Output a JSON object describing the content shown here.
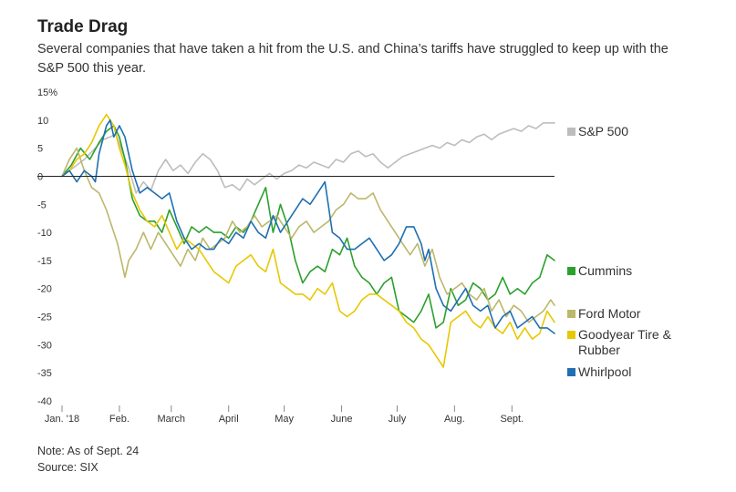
{
  "header": {
    "title": "Trade Drag",
    "subtitle": "Several companies that have taken a hit from the U.S. and China’s tariffs have struggled to keep up with the S&P 500 this year."
  },
  "footer": {
    "note": "Note: As of Sept. 24",
    "source": "Source: SIX"
  },
  "chart_data": {
    "type": "line",
    "title": "Trade Drag",
    "ylabel": "",
    "xlabel": "",
    "ylim": [
      -40,
      15
    ],
    "xlim": [
      0,
      266
    ],
    "grid": false,
    "legend_placement": "right, next to series ends",
    "y_ticks": [
      {
        "value": 15,
        "label": "15%"
      },
      {
        "value": 10,
        "label": "10"
      },
      {
        "value": 5,
        "label": "5"
      },
      {
        "value": 0,
        "label": "0"
      },
      {
        "value": -5,
        "label": "-5"
      },
      {
        "value": -10,
        "label": "-10"
      },
      {
        "value": -15,
        "label": "-15"
      },
      {
        "value": -20,
        "label": "-20"
      },
      {
        "value": -25,
        "label": "-25"
      },
      {
        "value": -30,
        "label": "-30"
      },
      {
        "value": -35,
        "label": "-35"
      },
      {
        "value": -40,
        "label": "-40"
      }
    ],
    "x_ticks": [
      {
        "day": 0,
        "label": "Jan. '18"
      },
      {
        "day": 31,
        "label": "Feb."
      },
      {
        "day": 59,
        "label": "March"
      },
      {
        "day": 90,
        "label": "April"
      },
      {
        "day": 120,
        "label": "May"
      },
      {
        "day": 151,
        "label": "June"
      },
      {
        "day": 181,
        "label": "July"
      },
      {
        "day": 212,
        "label": "Aug."
      },
      {
        "day": 243,
        "label": "Sept."
      }
    ],
    "series": [
      {
        "name": "S&P 500",
        "label_lines": [
          "S&P 500"
        ],
        "color": "#bdbdbd",
        "x": [
          0,
          6,
          12,
          18,
          22,
          26,
          29,
          33,
          36,
          40,
          44,
          48,
          52,
          56,
          60,
          64,
          68,
          72,
          76,
          80,
          84,
          88,
          92,
          96,
          100,
          104,
          108,
          112,
          116,
          120,
          124,
          128,
          132,
          136,
          140,
          144,
          148,
          152,
          156,
          160,
          164,
          168,
          172,
          176,
          180,
          184,
          188,
          192,
          196,
          200,
          204,
          208,
          212,
          216,
          220,
          224,
          228,
          232,
          236,
          240,
          244,
          248,
          252,
          256,
          260,
          264,
          266
        ],
        "y": [
          0,
          1.5,
          3,
          5,
          6.5,
          7,
          7.5,
          4,
          1.5,
          -3,
          -1,
          -2.5,
          1,
          3,
          1,
          2,
          0.5,
          2.5,
          4,
          3,
          1,
          -2,
          -1.5,
          -2.5,
          -0.5,
          -1.5,
          -0.5,
          0.5,
          -0.5,
          0.5,
          1,
          2,
          1.5,
          2.5,
          2,
          1.5,
          3,
          2.5,
          4,
          4.5,
          3.5,
          4,
          2.5,
          1.5,
          2.5,
          3.5,
          4,
          4.5,
          5,
          5.5,
          5,
          6,
          5.5,
          6.5,
          6,
          7,
          7.5,
          6.5,
          7.5,
          8,
          8.5,
          8,
          9,
          8.5,
          9.5,
          9.5,
          9.5
        ]
      },
      {
        "name": "Cummins",
        "label_lines": [
          "Cummins"
        ],
        "color": "#2ca02c",
        "x": [
          0,
          5,
          10,
          15,
          20,
          24,
          28,
          31,
          34,
          38,
          42,
          46,
          50,
          54,
          58,
          62,
          66,
          70,
          74,
          78,
          82,
          86,
          90,
          94,
          98,
          102,
          106,
          110,
          114,
          118,
          122,
          126,
          130,
          134,
          138,
          142,
          146,
          150,
          154,
          158,
          162,
          166,
          170,
          174,
          178,
          182,
          186,
          190,
          194,
          198,
          202,
          206,
          210,
          214,
          218,
          222,
          226,
          230,
          234,
          238,
          242,
          246,
          250,
          254,
          258,
          262,
          266
        ],
        "y": [
          0,
          2,
          5,
          3,
          6,
          8,
          9,
          7,
          3,
          -4,
          -7,
          -8,
          -8,
          -10,
          -6,
          -9,
          -12,
          -9,
          -10,
          -9,
          -10,
          -10,
          -11,
          -9,
          -10,
          -8,
          -5,
          -2,
          -10,
          -5,
          -9,
          -15,
          -19,
          -17,
          -16,
          -17,
          -13,
          -14,
          -11,
          -16,
          -18,
          -19,
          -21,
          -19,
          -18,
          -24,
          -25,
          -26,
          -24,
          -21,
          -27,
          -26,
          -20,
          -23,
          -22,
          -19,
          -20,
          -22,
          -21,
          -18,
          -21,
          -20,
          -21,
          -19,
          -18,
          -14,
          -15
        ]
      },
      {
        "name": "Ford Motor",
        "label_lines": [
          "Ford Motor"
        ],
        "color": "#bdb76b",
        "x": [
          0,
          4,
          8,
          12,
          16,
          20,
          24,
          28,
          30,
          32,
          34,
          36,
          40,
          44,
          48,
          52,
          56,
          60,
          64,
          68,
          72,
          76,
          80,
          84,
          88,
          92,
          96,
          100,
          104,
          108,
          112,
          116,
          120,
          124,
          128,
          132,
          136,
          140,
          144,
          148,
          152,
          156,
          160,
          164,
          168,
          172,
          176,
          180,
          184,
          188,
          192,
          196,
          200,
          204,
          208,
          212,
          216,
          220,
          224,
          228,
          232,
          236,
          240,
          244,
          248,
          252,
          256,
          260,
          264,
          266
        ],
        "y": [
          0,
          3,
          5,
          1,
          -2,
          -3,
          -6,
          -10,
          -12,
          -15,
          -18,
          -15,
          -13,
          -10,
          -13,
          -10,
          -12,
          -14,
          -16,
          -13,
          -15,
          -11,
          -13,
          -12,
          -11,
          -8,
          -10,
          -9,
          -7,
          -9,
          -8,
          -7,
          -9,
          -11,
          -9,
          -8,
          -10,
          -9,
          -8,
          -6,
          -5,
          -3,
          -4,
          -4,
          -3,
          -6,
          -8,
          -10,
          -12,
          -14,
          -12,
          -16,
          -13,
          -18,
          -21,
          -20,
          -19,
          -21,
          -22,
          -20,
          -24,
          -22,
          -25,
          -23,
          -24,
          -26,
          -25,
          -24,
          -22,
          -23
        ]
      },
      {
        "name": "Goodyear Tire & Rubber",
        "label_lines": [
          "Goodyear Tire &",
          "Rubber"
        ],
        "color": "#e8c800",
        "x": [
          0,
          4,
          8,
          12,
          16,
          20,
          24,
          28,
          31,
          34,
          38,
          42,
          46,
          50,
          54,
          58,
          62,
          66,
          70,
          74,
          78,
          82,
          86,
          90,
          94,
          98,
          102,
          106,
          110,
          114,
          118,
          122,
          126,
          130,
          134,
          138,
          142,
          146,
          150,
          154,
          158,
          162,
          166,
          170,
          174,
          178,
          182,
          186,
          190,
          194,
          198,
          202,
          206,
          210,
          214,
          218,
          222,
          226,
          230,
          234,
          238,
          242,
          246,
          250,
          254,
          258,
          262,
          266
        ],
        "y": [
          0,
          1,
          3,
          4,
          6,
          9,
          11,
          9,
          5,
          2,
          -3,
          -6,
          -8,
          -9,
          -7,
          -10,
          -13,
          -11,
          -12,
          -13,
          -15,
          -17,
          -18,
          -19,
          -16,
          -15,
          -14,
          -16,
          -17,
          -13,
          -19,
          -20,
          -21,
          -21,
          -22,
          -20,
          -21,
          -19,
          -24,
          -25,
          -24,
          -22,
          -21,
          -21,
          -22,
          -23,
          -24,
          -26,
          -27,
          -29,
          -30,
          -32,
          -34,
          -26,
          -25,
          -24,
          -26,
          -27,
          -25,
          -27,
          -28,
          -26,
          -29,
          -27,
          -29,
          -28,
          -24,
          -26
        ]
      },
      {
        "name": "Whirlpool",
        "label_lines": [
          "Whirlpool"
        ],
        "color": "#1f6fb2",
        "x": [
          0,
          4,
          8,
          12,
          16,
          18,
          20,
          24,
          26,
          28,
          31,
          34,
          38,
          42,
          46,
          50,
          54,
          58,
          62,
          66,
          70,
          74,
          78,
          82,
          86,
          90,
          94,
          98,
          102,
          106,
          110,
          114,
          118,
          122,
          126,
          130,
          134,
          138,
          142,
          146,
          150,
          154,
          158,
          162,
          166,
          170,
          174,
          178,
          182,
          186,
          190,
          194,
          196,
          198,
          202,
          206,
          210,
          214,
          218,
          222,
          226,
          230,
          234,
          238,
          242,
          246,
          250,
          254,
          258,
          262,
          266
        ],
        "y": [
          0,
          1,
          -1,
          1,
          0,
          -1,
          4,
          9,
          10,
          7,
          9,
          7,
          1,
          -3,
          -2,
          -3,
          -4,
          -3,
          -8,
          -11,
          -13,
          -12,
          -13,
          -13,
          -11,
          -12,
          -10,
          -11,
          -8,
          -10,
          -11,
          -7,
          -10,
          -8,
          -6,
          -4,
          -5,
          -3,
          -1,
          -10,
          -11,
          -13,
          -13,
          -12,
          -11,
          -13,
          -15,
          -14,
          -12,
          -9,
          -9,
          -12,
          -15,
          -13,
          -20,
          -23,
          -24,
          -22,
          -20,
          -23,
          -24,
          -23,
          -27,
          -25,
          -24,
          -27,
          -26,
          -25,
          -27,
          -27,
          -28
        ]
      }
    ]
  }
}
